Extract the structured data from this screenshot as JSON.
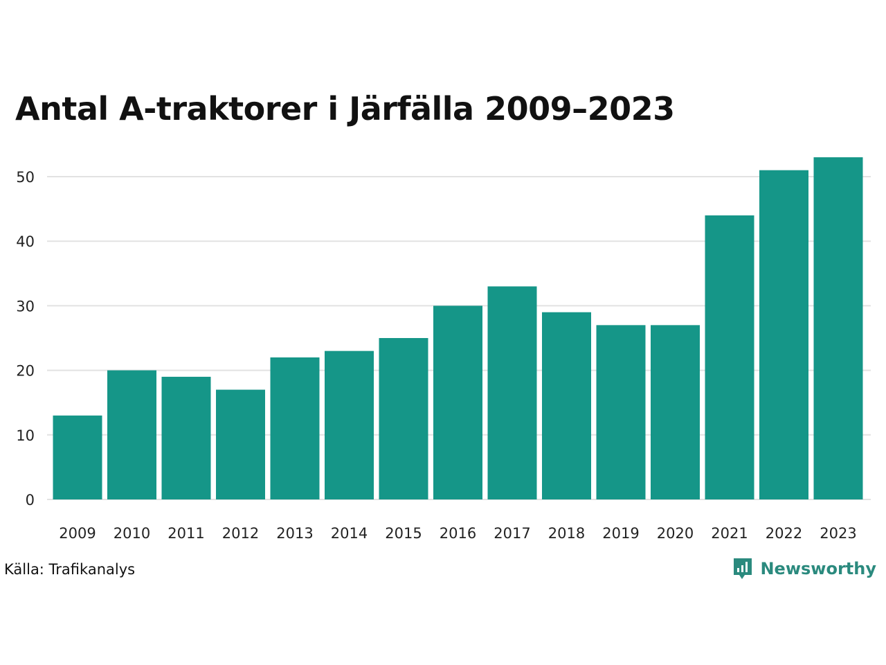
{
  "chart_data": {
    "type": "bar",
    "title": "Antal A-traktorer i Järfälla 2009–2023",
    "categories": [
      "2009",
      "2010",
      "2011",
      "2012",
      "2013",
      "2014",
      "2015",
      "2016",
      "2017",
      "2018",
      "2019",
      "2020",
      "2021",
      "2022",
      "2023"
    ],
    "values": [
      13,
      20,
      19,
      17,
      22,
      23,
      25,
      30,
      33,
      29,
      27,
      27,
      44,
      51,
      53
    ],
    "ylim": [
      0,
      55
    ],
    "yticks": [
      0,
      10,
      20,
      30,
      40,
      50
    ],
    "xlabel": "",
    "ylabel": "",
    "grid": true,
    "bar_color": "#159688",
    "grid_color": "#e2e2e2"
  },
  "footer": {
    "source": "Källa: Trafikanalys",
    "brand": "Newsworthy",
    "brand_icon": "bar-chart-icon",
    "brand_color": "#2b8a7e"
  }
}
